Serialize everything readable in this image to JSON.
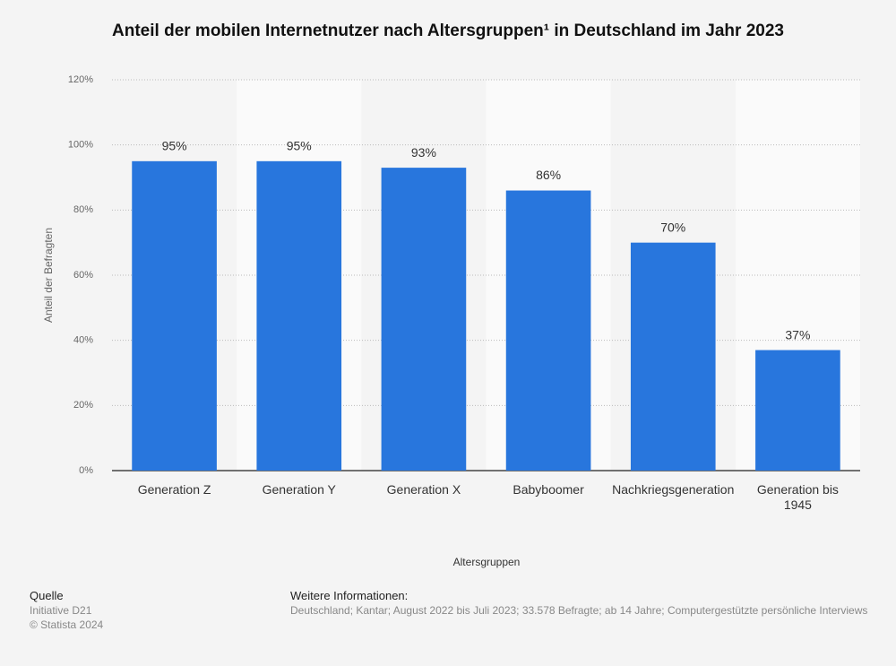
{
  "chart_data": {
    "type": "bar",
    "title": "Anteil der mobilen Internetnutzer nach Altersgruppen¹ in Deutschland im Jahr 2023",
    "categories": [
      "Generation Z",
      "Generation Y",
      "Generation X",
      "Babyboomer",
      "Nachkriegsgeneration",
      "Generation bis 1945"
    ],
    "values": [
      95,
      95,
      93,
      86,
      70,
      37
    ],
    "value_labels": [
      "95%",
      "95%",
      "93%",
      "86%",
      "70%",
      "37%"
    ],
    "color": "#2876dd",
    "ylim": [
      0,
      120
    ],
    "yticks": [
      {
        "value": 0,
        "label": "0%"
      },
      {
        "value": 20,
        "label": "20%"
      },
      {
        "value": 40,
        "label": "40%"
      },
      {
        "value": 60,
        "label": "60%"
      },
      {
        "value": 80,
        "label": "80%"
      },
      {
        "value": 100,
        "label": "100%"
      },
      {
        "value": 120,
        "label": "120%"
      }
    ],
    "grid": true,
    "xlabel": "Altersgruppen",
    "ylabel": "Anteil der Befragten"
  },
  "footer": {
    "source_title": "Quelle",
    "source": "Initiative D21",
    "copyright": "© Statista 2024",
    "info_title": "Weitere Informationen:",
    "info": "Deutschland; Kantar; August 2022 bis Juli 2023; 33.578 Befragte; ab 14 Jahre; Computergestützte persönliche Interviews"
  }
}
